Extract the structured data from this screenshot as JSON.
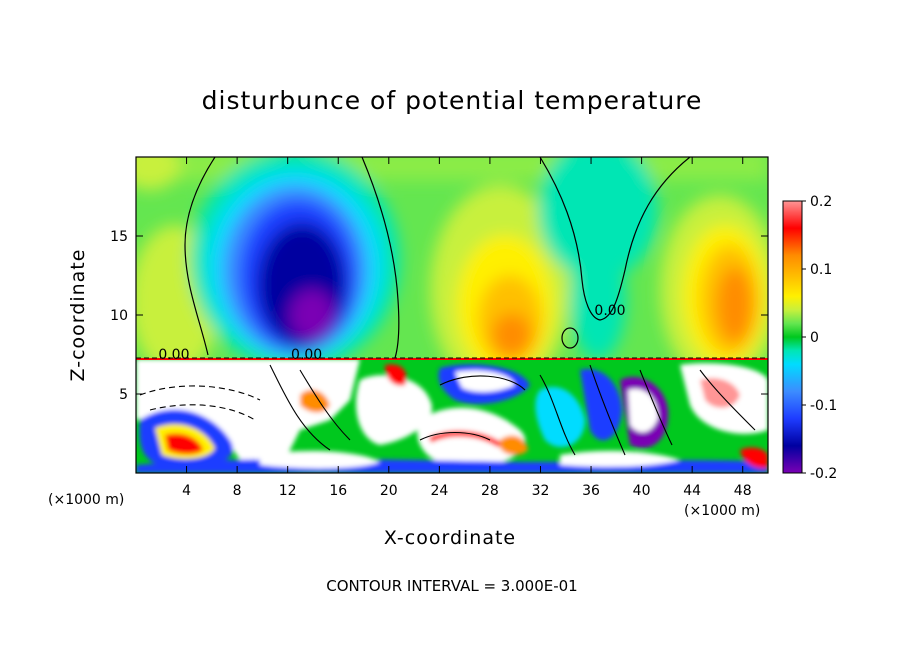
{
  "title": "disturbunce of potential temperature",
  "contour_note": "CONTOUR INTERVAL = 3.000E-01",
  "x_unit": "(×1000 m)",
  "colors": {
    "purple": "#7a00b4",
    "navy": "#0000a0",
    "blue": "#1e3cff",
    "lightblue": "#3c8cff",
    "cyan": "#00dcff",
    "teal": "#00e6b4",
    "green": "#00c81e",
    "lightgreen": "#64e650",
    "yellowgreen": "#c8f03c",
    "yellow": "#fff000",
    "gold": "#ffc000",
    "orange": "#ff8c00",
    "red": "#ff0000",
    "pink": "#ff9696"
  },
  "chart_data": {
    "type": "heatmap",
    "title": "disturbunce of potential temperature",
    "xlabel": "X-coordinate",
    "ylabel": "Z-coordinate",
    "xlim": [
      0,
      50
    ],
    "ylim": [
      0,
      20
    ],
    "x_ticks": [
      4,
      8,
      12,
      16,
      20,
      24,
      28,
      32,
      36,
      40,
      44,
      48
    ],
    "y_ticks": [
      5,
      10,
      15
    ],
    "colorbar": {
      "range": [
        -0.2,
        0.2
      ],
      "tick_labels": [
        "0.2",
        "0.1",
        "0",
        "-0.1",
        "-0.2"
      ],
      "tick_values": [
        0.2,
        0.1,
        0,
        -0.1,
        -0.2
      ]
    },
    "contour_labels": [
      {
        "text": "0.00",
        "x": 3.0,
        "y": 7.2
      },
      {
        "text": "0.00",
        "x": 13.5,
        "y": 7.2
      },
      {
        "text": "0.00",
        "x": 37.5,
        "y": 10.0
      }
    ],
    "features": [
      {
        "region": "upper",
        "x_center": 12.5,
        "z_center": 14,
        "min_value": -0.2,
        "description": "negative anomaly"
      },
      {
        "region": "upper",
        "x_center": 47,
        "z_center": 12,
        "max_value": 0.12,
        "description": "positive anomaly"
      }
    ],
    "contour_interval": 0.3
  }
}
